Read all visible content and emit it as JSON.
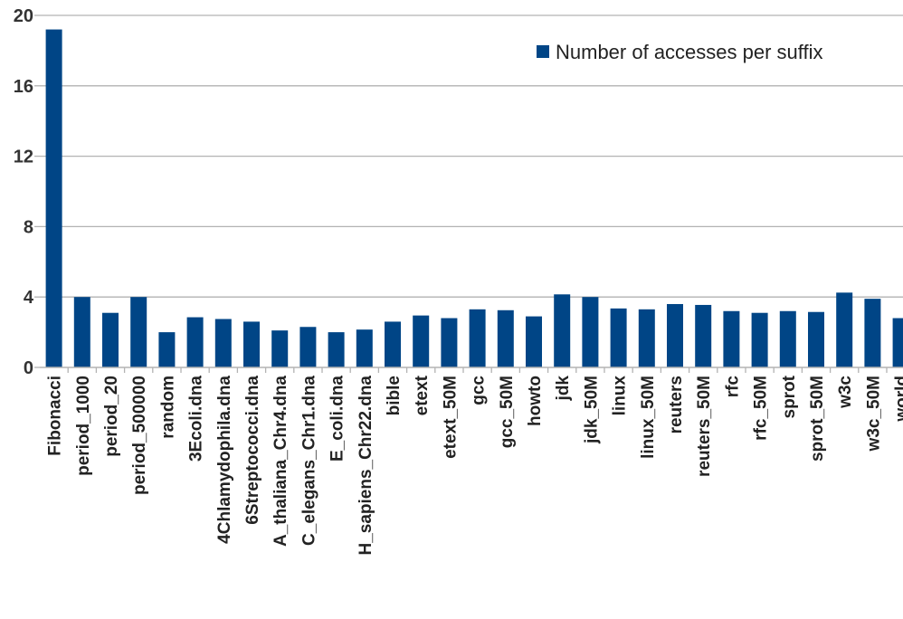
{
  "chart_data": {
    "type": "bar",
    "categories": [
      "Fibonacci",
      "period_1000",
      "period_20",
      "period_500000",
      "random",
      "3Ecoli.dna",
      "4Chlamydophila.dna",
      "6Streptococci.dna",
      "A_thaliana_Chr4.dna",
      "C_elegans_Chr1.dna",
      "E_coli.dna",
      "H_sapiens_Chr22.dna",
      "bible",
      "etext",
      "etext_50M",
      "gcc",
      "gcc_50M",
      "howto",
      "jdk",
      "jdk_50M",
      "linux",
      "linux_50M",
      "reuters",
      "reuters_50M",
      "rfc",
      "rfc_50M",
      "sprot",
      "sprot_50M",
      "w3c",
      "w3c_50M",
      "world"
    ],
    "series": [
      {
        "name": "Number of accesses per suffix",
        "values": [
          19.2,
          4.0,
          3.1,
          4.0,
          2.0,
          2.85,
          2.75,
          2.6,
          2.1,
          2.3,
          2.0,
          2.15,
          2.6,
          2.95,
          2.8,
          3.3,
          3.25,
          2.9,
          4.15,
          4.0,
          3.35,
          3.3,
          3.6,
          3.55,
          3.2,
          3.1,
          3.2,
          3.15,
          4.25,
          3.9,
          2.8
        ]
      }
    ],
    "ylim": [
      0,
      20
    ],
    "yticks": [
      0,
      4,
      8,
      12,
      16,
      20
    ],
    "grid": true,
    "legend_position": "top-right",
    "colors": {
      "bar": "#004586",
      "grid": "#b3b3b3",
      "axis": "#b3b3b3"
    }
  }
}
